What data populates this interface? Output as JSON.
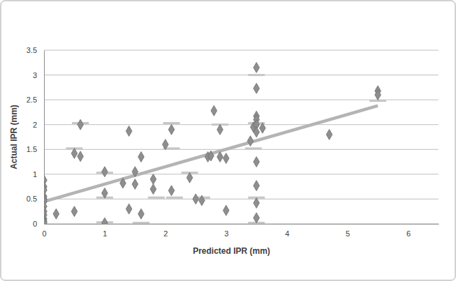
{
  "chart_data": {
    "type": "scatter",
    "x_label": "Predicted IPR (mm)",
    "y_label": "Actual IPR (mm)",
    "xlim": [
      0,
      6.5
    ],
    "xticks": [
      0,
      1,
      2,
      3,
      4,
      5,
      6
    ],
    "ylim": [
      0,
      3.5
    ],
    "yticks": [
      0,
      0.5,
      1,
      1.5,
      2,
      2.5,
      3,
      3.5
    ],
    "grid": "y",
    "series": [
      {
        "type": "scatter",
        "marker": "dash",
        "color": "#c6c6c6",
        "x": [
          0.5,
          0.6,
          1,
          1,
          1,
          1.6,
          1.85,
          2.15,
          2.1,
          2.1,
          2.4,
          2.6,
          2.9,
          3.45,
          3.5,
          3.5,
          3.5,
          3.5,
          5.5
        ],
        "values": [
          1.52,
          2.03,
          1.03,
          0.53,
          0.03,
          0.02,
          0.53,
          0.53,
          1.52,
          2.03,
          1.03,
          0.53,
          2.0,
          1.52,
          3.0,
          2.03,
          0.53,
          0.02,
          2.48
        ]
      },
      {
        "type": "line",
        "color": "#b4b4b4",
        "x": [
          0,
          5.5
        ],
        "values": [
          0.45,
          2.38
        ]
      },
      {
        "type": "scatter",
        "marker": "diamond",
        "color": "#8e8e8e",
        "x": [
          0,
          0,
          0,
          0,
          0,
          0,
          0,
          0,
          0,
          0,
          0,
          0,
          0.2,
          0.5,
          0.5,
          0.6,
          0.6,
          1,
          1,
          1,
          1.3,
          1.4,
          1.4,
          1.5,
          1.5,
          1.6,
          1.6,
          1.8,
          1.8,
          2.0,
          2.1,
          2.1,
          2.4,
          2.5,
          2.6,
          2.7,
          2.75,
          2.8,
          2.9,
          2.9,
          3.0,
          3.0,
          3.4,
          3.45,
          3.5,
          3.5,
          3.5,
          3.5,
          3.5,
          3.5,
          3.6,
          3.5,
          3.5,
          3.5,
          3.5,
          4.7,
          5.5,
          5.5
        ],
        "values": [
          0.88,
          0.75,
          0.68,
          0.55,
          0.5,
          0.45,
          0.35,
          0.25,
          0.18,
          0.1,
          0.05,
          0.02,
          0.2,
          0.25,
          1.42,
          1.36,
          2.0,
          1.05,
          0.62,
          0.02,
          0.82,
          1.87,
          0.3,
          1.05,
          0.8,
          1.35,
          0.2,
          0.9,
          0.7,
          1.6,
          1.9,
          0.67,
          0.93,
          0.5,
          0.47,
          1.35,
          1.37,
          2.28,
          1.9,
          1.35,
          1.32,
          0.27,
          1.67,
          1.95,
          3.15,
          2.73,
          2.17,
          2.1,
          2.0,
          1.85,
          1.93,
          1.25,
          0.77,
          0.42,
          0.12,
          1.8,
          2.68,
          2.6
        ]
      }
    ]
  }
}
